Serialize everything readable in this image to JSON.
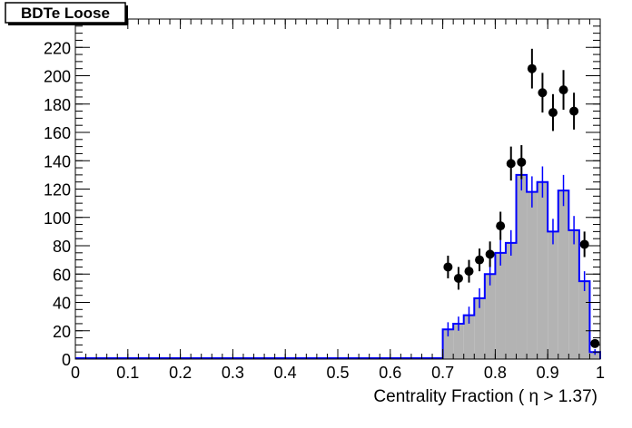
{
  "chart_data": {
    "type": "histogram",
    "title": "BDTe Loose",
    "xlabel": "Centrality Fraction ( η > 1.37)",
    "ylabel": "",
    "xlim": [
      0,
      1
    ],
    "ylim": [
      0,
      240
    ],
    "grid": false,
    "x_ticks": [
      "0",
      "0.1",
      "0.2",
      "0.3",
      "0.4",
      "0.5",
      "0.6",
      "0.7",
      "0.8",
      "0.9",
      "1"
    ],
    "y_ticks": [
      "0",
      "20",
      "40",
      "60",
      "80",
      "100",
      "120",
      "140",
      "160",
      "180",
      "200",
      "220",
      "240"
    ],
    "bin_edges": [
      0.7,
      0.72,
      0.74,
      0.76,
      0.78,
      0.8,
      0.82,
      0.84,
      0.86,
      0.88,
      0.9,
      0.92,
      0.94,
      0.96,
      0.98,
      1.0
    ],
    "series": [
      {
        "kind": "filled-histogram",
        "fill_color": "#b3b3b3",
        "line_color": "#0000ff",
        "values": [
          21,
          25,
          31,
          43,
          60,
          75,
          82,
          130,
          118,
          125,
          90,
          119,
          91,
          55,
          5
        ],
        "errors": [
          5,
          5,
          6,
          7,
          8,
          9,
          9,
          11,
          11,
          11,
          9,
          11,
          10,
          7,
          2
        ]
      },
      {
        "kind": "points-with-errors",
        "marker_color": "#000000",
        "x": [
          0.71,
          0.73,
          0.75,
          0.77,
          0.79,
          0.81,
          0.83,
          0.85,
          0.87,
          0.89,
          0.91,
          0.93,
          0.95,
          0.97,
          0.99
        ],
        "y": [
          65,
          57,
          62,
          70,
          74,
          94,
          138,
          139,
          205,
          188,
          174,
          190,
          175,
          81,
          11
        ],
        "errors": [
          8,
          8,
          8,
          8,
          9,
          10,
          12,
          12,
          14,
          14,
          13,
          14,
          13,
          9,
          3
        ]
      }
    ]
  }
}
